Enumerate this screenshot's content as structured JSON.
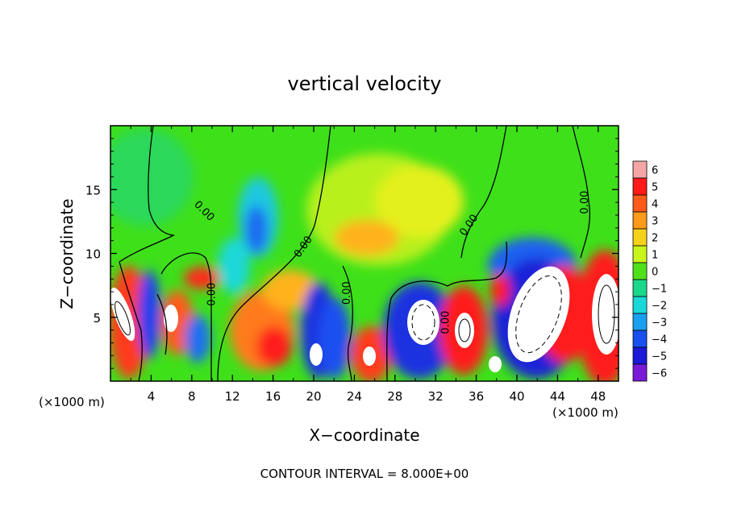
{
  "chart_data": {
    "type": "heatmap",
    "title": "vertical velocity",
    "xlabel": "X−coordinate",
    "ylabel": "Z−coordinate",
    "x_unit_left": "(×1000 m)",
    "x_unit_right": "(×1000 m)",
    "xlim": [
      0,
      50
    ],
    "ylim": [
      0,
      20
    ],
    "x_ticks": [
      4,
      8,
      12,
      16,
      20,
      24,
      28,
      32,
      36,
      40,
      44,
      48
    ],
    "y_ticks": [
      5,
      10,
      15
    ],
    "colorbar": {
      "ticks": [
        6,
        5,
        4,
        3,
        2,
        1,
        0,
        -1,
        -2,
        -3,
        -4,
        -5,
        -6
      ],
      "tick_labels": [
        "6",
        "5",
        "4",
        "3",
        "2",
        "1",
        "0",
        "−1",
        "−2",
        "−3",
        "−4",
        "−5",
        "−6"
      ],
      "colors": [
        "#f4a6a6",
        "#ff1a1a",
        "#ff5a1a",
        "#ff9a1a",
        "#f5d21a",
        "#c8f51a",
        "#4fe01a",
        "#1ad88a",
        "#1ad8d8",
        "#1aa0f0",
        "#1a50f0",
        "#1a1ad8",
        "#7a1ad8"
      ]
    },
    "contour_labels": [
      {
        "text": "0.00",
        "x": 9.2,
        "z": 13.3,
        "angle": 45
      },
      {
        "text": "0.00",
        "x": 10,
        "z": 6.8,
        "angle": -90
      },
      {
        "text": "0.00",
        "x": 19,
        "z": 10.5,
        "angle": -55
      },
      {
        "text": "0.00",
        "x": 23.3,
        "z": 6.9,
        "angle": -90
      },
      {
        "text": "0.00",
        "x": 33,
        "z": 4.6,
        "angle": -90
      },
      {
        "text": "0.00",
        "x": 35.3,
        "z": 12.2,
        "angle": -55
      },
      {
        "text": "0.00",
        "x": 46.7,
        "z": 14,
        "angle": -90
      }
    ],
    "annotation": "CONTOUR INTERVAL = 8.000E+00"
  }
}
